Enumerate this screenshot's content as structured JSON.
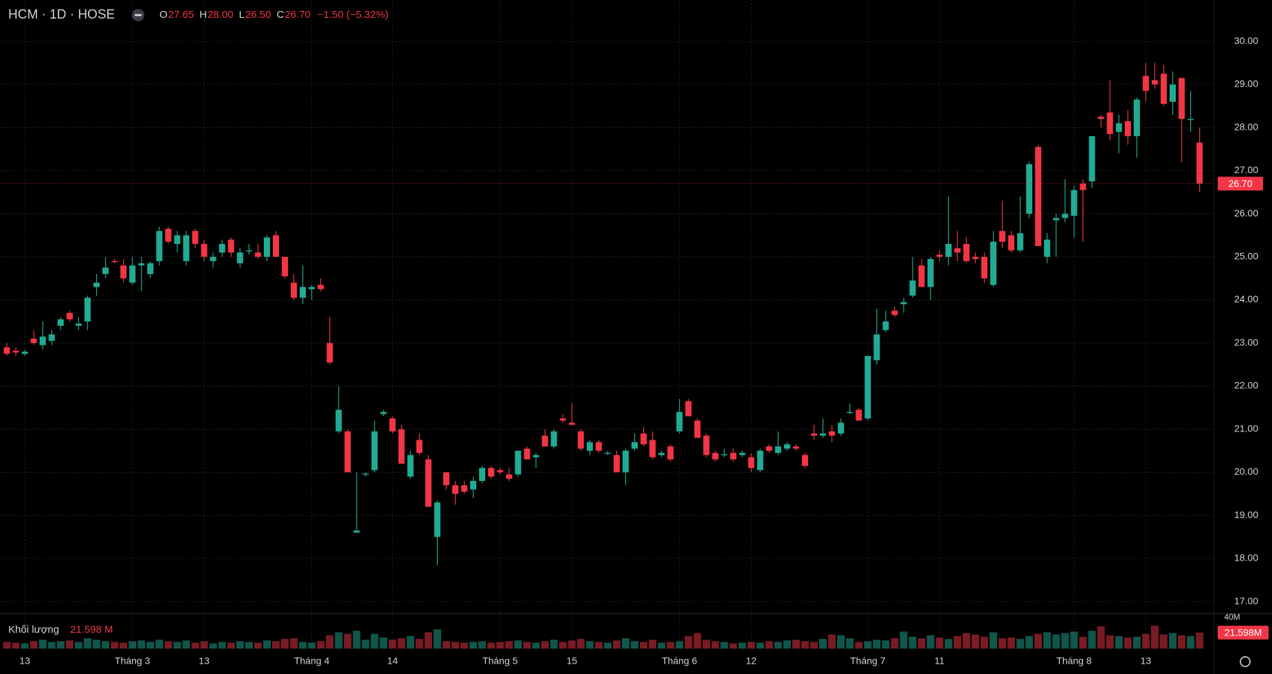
{
  "chart_data": {
    "type": "candlestick",
    "symbol": "HCM · 1D · HOSE",
    "ohlc_legend": [
      {
        "key": "O",
        "value": "27.65"
      },
      {
        "key": "H",
        "value": "28.00"
      },
      {
        "key": "L",
        "value": "26.50"
      },
      {
        "key": "C",
        "value": "26.70"
      }
    ],
    "change": "−1.50 (−5.32%)",
    "up_color": "#22ab94",
    "down_color": "#f23645",
    "ylim": [
      16.77,
      30.96
    ],
    "yticks": [
      {
        "value": 17,
        "label": "17.00"
      },
      {
        "value": 18,
        "label": "18.00"
      },
      {
        "value": 19,
        "label": "19.00"
      },
      {
        "value": 20,
        "label": "20.00"
      },
      {
        "value": 21,
        "label": "21.00"
      },
      {
        "value": 22,
        "label": "22.00"
      },
      {
        "value": 23,
        "label": "23.00"
      },
      {
        "value": 24,
        "label": "24.00"
      },
      {
        "value": 25,
        "label": "25.00"
      },
      {
        "value": 26,
        "label": "26.00"
      },
      {
        "value": 27,
        "label": "27.00"
      },
      {
        "value": 28,
        "label": "28.00"
      },
      {
        "value": 29,
        "label": "29.00"
      },
      {
        "value": 30,
        "label": "30.00"
      }
    ],
    "last_price": {
      "value": 26.7,
      "label": "26.70"
    },
    "grid": true,
    "categories": [
      null,
      null,
      "13",
      null,
      null,
      null,
      null,
      null,
      null,
      null,
      null,
      null,
      null,
      null,
      "Tháng 3",
      null,
      null,
      null,
      null,
      null,
      null,
      null,
      "13",
      null,
      null,
      null,
      null,
      null,
      null,
      null,
      null,
      null,
      null,
      null,
      "Tháng 4",
      null,
      null,
      null,
      null,
      null,
      null,
      null,
      null,
      "14",
      null,
      null,
      null,
      null,
      null,
      null,
      null,
      null,
      null,
      null,
      null,
      "Tháng 5",
      null,
      null,
      null,
      null,
      null,
      null,
      null,
      "15",
      null,
      null,
      null,
      null,
      null,
      null,
      null,
      null,
      null,
      null,
      null,
      "Tháng 6",
      null,
      null,
      null,
      null,
      null,
      null,
      null,
      "12",
      null,
      null,
      null,
      null,
      null,
      null,
      null,
      null,
      null,
      null,
      null,
      null,
      "Tháng 7",
      null,
      null,
      null,
      null,
      null,
      null,
      null,
      "11",
      null,
      null,
      null,
      null,
      null,
      null,
      null,
      null,
      null,
      null,
      null,
      null,
      null,
      null,
      "Tháng 8",
      null,
      null,
      null,
      null,
      null,
      null,
      null,
      "13",
      null,
      null,
      null,
      null,
      null,
      null
    ],
    "ohlc": [
      [
        22.9,
        23.0,
        22.7,
        22.75
      ],
      [
        22.82,
        22.9,
        22.7,
        22.78
      ],
      [
        22.75,
        22.85,
        22.7,
        22.8
      ],
      [
        23.1,
        23.3,
        22.95,
        23.0
      ],
      [
        22.95,
        23.5,
        22.85,
        23.15
      ],
      [
        23.05,
        23.3,
        22.95,
        23.2
      ],
      [
        23.4,
        23.6,
        23.3,
        23.55
      ],
      [
        23.7,
        23.75,
        23.5,
        23.55
      ],
      [
        23.4,
        23.6,
        23.3,
        23.45
      ],
      [
        23.5,
        24.1,
        23.3,
        24.05
      ],
      [
        24.3,
        24.6,
        24.1,
        24.4
      ],
      [
        24.6,
        25.0,
        24.5,
        24.75
      ],
      [
        24.9,
        24.95,
        24.85,
        24.88
      ],
      [
        24.8,
        24.95,
        24.4,
        24.5
      ],
      [
        24.4,
        25.0,
        24.35,
        24.8
      ],
      [
        24.8,
        25.0,
        24.2,
        24.85
      ],
      [
        24.6,
        24.9,
        24.5,
        24.85
      ],
      [
        24.9,
        25.7,
        24.8,
        25.6
      ],
      [
        25.65,
        25.7,
        25.3,
        25.35
      ],
      [
        25.3,
        25.6,
        25.1,
        25.5
      ],
      [
        24.9,
        25.6,
        24.8,
        25.5
      ],
      [
        25.6,
        25.65,
        25.2,
        25.3
      ],
      [
        25.3,
        25.4,
        24.9,
        25.0
      ],
      [
        24.9,
        25.1,
        24.75,
        25.0
      ],
      [
        25.1,
        25.4,
        25.0,
        25.3
      ],
      [
        25.4,
        25.45,
        25.0,
        25.1
      ],
      [
        24.85,
        25.2,
        24.75,
        25.1
      ],
      [
        25.15,
        25.3,
        25.05,
        25.15
      ],
      [
        25.1,
        25.3,
        24.95,
        25.0
      ],
      [
        25.0,
        25.5,
        24.9,
        25.45
      ],
      [
        25.5,
        25.6,
        25.0,
        25.0
      ],
      [
        25.0,
        25.0,
        24.5,
        24.55
      ],
      [
        24.4,
        24.6,
        24.0,
        24.05
      ],
      [
        24.05,
        24.8,
        23.9,
        24.3
      ],
      [
        24.25,
        24.35,
        24.0,
        24.3
      ],
      [
        24.35,
        24.5,
        24.2,
        24.25
      ],
      [
        23.0,
        23.6,
        22.5,
        22.55
      ],
      [
        20.95,
        22.0,
        20.9,
        21.45
      ],
      [
        20.95,
        21.0,
        20.0,
        20.0
      ],
      [
        18.6,
        20.0,
        18.6,
        18.65
      ],
      [
        19.95,
        20.0,
        19.9,
        19.97
      ],
      [
        20.05,
        21.2,
        20.0,
        20.95
      ],
      [
        21.35,
        21.45,
        21.3,
        21.4
      ],
      [
        21.25,
        21.3,
        20.9,
        20.95
      ],
      [
        21.0,
        21.1,
        20.2,
        20.2
      ],
      [
        19.9,
        20.5,
        19.85,
        20.4
      ],
      [
        20.75,
        20.9,
        20.4,
        20.45
      ],
      [
        20.3,
        20.4,
        19.2,
        19.2
      ],
      [
        18.5,
        19.35,
        17.85,
        19.3
      ],
      [
        20.0,
        20.0,
        19.6,
        19.7
      ],
      [
        19.7,
        19.8,
        19.25,
        19.5
      ],
      [
        19.7,
        19.8,
        19.5,
        19.55
      ],
      [
        19.6,
        19.9,
        19.4,
        19.8
      ],
      [
        19.8,
        20.15,
        19.75,
        20.1
      ],
      [
        20.1,
        20.15,
        19.85,
        19.9
      ],
      [
        20.05,
        20.1,
        19.95,
        20.0
      ],
      [
        19.95,
        20.1,
        19.8,
        19.85
      ],
      [
        19.95,
        20.5,
        19.9,
        20.5
      ],
      [
        20.55,
        20.6,
        20.3,
        20.3
      ],
      [
        20.35,
        20.45,
        20.1,
        20.4
      ],
      [
        20.85,
        21.0,
        20.6,
        20.6
      ],
      [
        20.6,
        21.0,
        20.55,
        20.95
      ],
      [
        21.25,
        21.35,
        21.15,
        21.2
      ],
      [
        21.15,
        21.6,
        21.1,
        21.1
      ],
      [
        20.95,
        21.0,
        20.5,
        20.55
      ],
      [
        20.5,
        20.75,
        20.4,
        20.7
      ],
      [
        20.7,
        20.75,
        20.45,
        20.5
      ],
      [
        20.45,
        20.5,
        20.4,
        20.45
      ],
      [
        20.4,
        20.5,
        20.0,
        20.0
      ],
      [
        20.0,
        20.55,
        19.7,
        20.5
      ],
      [
        20.55,
        20.9,
        20.5,
        20.7
      ],
      [
        20.9,
        21.05,
        20.6,
        20.65
      ],
      [
        20.75,
        20.95,
        20.3,
        20.35
      ],
      [
        20.4,
        20.5,
        20.35,
        20.45
      ],
      [
        20.6,
        20.65,
        20.25,
        20.3
      ],
      [
        20.95,
        21.7,
        20.9,
        21.4
      ],
      [
        21.65,
        21.7,
        21.3,
        21.3
      ],
      [
        21.2,
        21.25,
        20.8,
        20.8
      ],
      [
        20.85,
        20.9,
        20.35,
        20.4
      ],
      [
        20.45,
        20.5,
        20.25,
        20.3
      ],
      [
        20.4,
        20.55,
        20.35,
        20.42
      ],
      [
        20.45,
        20.55,
        20.25,
        20.3
      ],
      [
        20.4,
        20.5,
        20.35,
        20.45
      ],
      [
        20.35,
        20.45,
        20.0,
        20.1
      ],
      [
        20.05,
        20.55,
        20.0,
        20.5
      ],
      [
        20.6,
        20.65,
        20.45,
        20.5
      ],
      [
        20.45,
        20.95,
        20.4,
        20.6
      ],
      [
        20.55,
        20.7,
        20.5,
        20.65
      ],
      [
        20.6,
        20.65,
        20.5,
        20.55
      ],
      [
        20.4,
        20.45,
        20.1,
        20.15
      ],
      [
        20.9,
        21.1,
        20.75,
        20.85
      ],
      [
        20.85,
        21.25,
        20.8,
        20.9
      ],
      [
        20.95,
        21.1,
        20.7,
        20.85
      ],
      [
        20.9,
        21.25,
        20.85,
        21.15
      ],
      [
        21.4,
        21.6,
        21.35,
        21.4
      ],
      [
        21.45,
        21.5,
        21.2,
        21.2
      ],
      [
        21.25,
        22.7,
        21.2,
        22.7
      ],
      [
        22.6,
        23.8,
        22.5,
        23.2
      ],
      [
        23.3,
        23.75,
        23.25,
        23.5
      ],
      [
        23.75,
        23.85,
        23.6,
        23.65
      ],
      [
        23.9,
        24.05,
        23.7,
        23.95
      ],
      [
        24.1,
        25.0,
        24.05,
        24.45
      ],
      [
        24.8,
        24.95,
        24.3,
        24.3
      ],
      [
        24.3,
        25.0,
        24.0,
        24.95
      ],
      [
        25.05,
        25.15,
        24.9,
        25.0
      ],
      [
        25.0,
        26.4,
        24.8,
        25.3
      ],
      [
        25.2,
        25.6,
        24.9,
        25.1
      ],
      [
        25.3,
        25.45,
        24.85,
        24.9
      ],
      [
        25.0,
        25.1,
        24.85,
        24.95
      ],
      [
        25.0,
        25.1,
        24.4,
        24.5
      ],
      [
        24.35,
        25.6,
        24.3,
        25.35
      ],
      [
        25.6,
        26.3,
        25.2,
        25.35
      ],
      [
        25.5,
        25.6,
        25.1,
        25.15
      ],
      [
        25.15,
        26.4,
        25.1,
        25.55
      ],
      [
        26.0,
        27.2,
        25.9,
        27.15
      ],
      [
        27.55,
        27.6,
        25.25,
        25.25
      ],
      [
        25.0,
        25.55,
        24.85,
        25.4
      ],
      [
        25.85,
        26.0,
        25.0,
        25.9
      ],
      [
        25.9,
        26.8,
        25.8,
        26.0
      ],
      [
        25.95,
        26.65,
        25.45,
        26.55
      ],
      [
        26.7,
        26.8,
        25.35,
        26.55
      ],
      [
        26.75,
        27.8,
        26.6,
        27.8
      ],
      [
        28.25,
        28.3,
        28.0,
        28.2
      ],
      [
        28.35,
        29.1,
        27.7,
        27.85
      ],
      [
        27.9,
        28.3,
        27.4,
        28.1
      ],
      [
        28.15,
        28.4,
        27.6,
        27.8
      ],
      [
        27.8,
        28.7,
        27.3,
        28.65
      ],
      [
        29.2,
        29.5,
        28.6,
        28.85
      ],
      [
        29.1,
        29.5,
        28.9,
        29.0
      ],
      [
        29.25,
        29.45,
        28.5,
        28.55
      ],
      [
        28.6,
        29.3,
        28.3,
        29.0
      ],
      [
        29.15,
        29.15,
        27.2,
        28.2
      ],
      [
        28.2,
        28.85,
        27.9,
        28.2
      ],
      [
        27.65,
        28.0,
        26.5,
        26.7
      ]
    ],
    "volume_label": "Khối lượng",
    "volume_value_label": "21.598 M",
    "volume_badge": "21.598M",
    "vlim": [
      0,
      40
    ],
    "vticks": [
      {
        "value": 40,
        "label": "40M"
      }
    ],
    "volume": [
      9,
      8,
      7,
      10,
      12,
      9,
      10,
      11,
      9,
      14,
      12,
      10,
      9,
      8,
      10,
      11,
      9,
      12,
      10,
      9,
      11,
      8,
      10,
      7,
      9,
      8,
      10,
      9,
      8,
      11,
      10,
      13,
      14,
      9,
      8,
      10,
      18,
      22,
      20,
      24,
      12,
      20,
      15,
      12,
      14,
      17,
      13,
      22,
      26,
      10,
      9,
      8,
      9,
      10,
      8,
      9,
      10,
      11,
      9,
      8,
      10,
      12,
      9,
      11,
      13,
      10,
      9,
      8,
      11,
      14,
      10,
      9,
      12,
      8,
      9,
      10,
      17,
      21,
      12,
      10,
      9,
      7,
      8,
      9,
      8,
      10,
      9,
      11,
      12,
      10,
      9,
      13,
      19,
      18,
      14,
      9,
      10,
      12,
      11,
      14,
      23,
      16,
      14,
      18,
      15,
      13,
      17,
      21,
      19,
      16,
      22,
      14,
      15,
      13,
      17,
      20,
      22,
      19,
      21,
      23,
      16,
      24,
      30,
      18,
      17,
      15,
      16,
      20,
      31,
      19,
      21,
      18,
      17,
      21.598
    ]
  }
}
